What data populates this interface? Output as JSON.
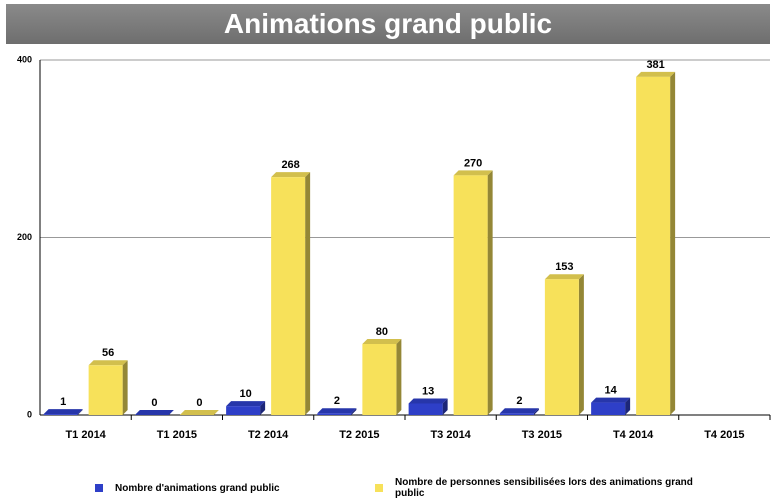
{
  "chart_data": {
    "type": "bar3d",
    "title": "Animations grand public",
    "categories": [
      "T1 2014",
      "T1 2015",
      "T2 2014",
      "T2 2015",
      "T3 2014",
      "T3 2015",
      "T4 2014",
      "T4 2015"
    ],
    "series": [
      {
        "name": "Nombre d'animations grand public",
        "color": "#2e3fc8",
        "values": [
          1,
          0,
          10,
          2,
          13,
          2,
          14,
          null
        ]
      },
      {
        "name": "Nombre de personnes sensibilisées lors des animations grand public",
        "color": "#f7e15a",
        "values": [
          56,
          0,
          268,
          80,
          270,
          153,
          381,
          null
        ]
      }
    ],
    "ylim": [
      0,
      400
    ],
    "yticks": [
      0,
      200,
      400
    ],
    "grid": true,
    "legend": "bottom"
  }
}
